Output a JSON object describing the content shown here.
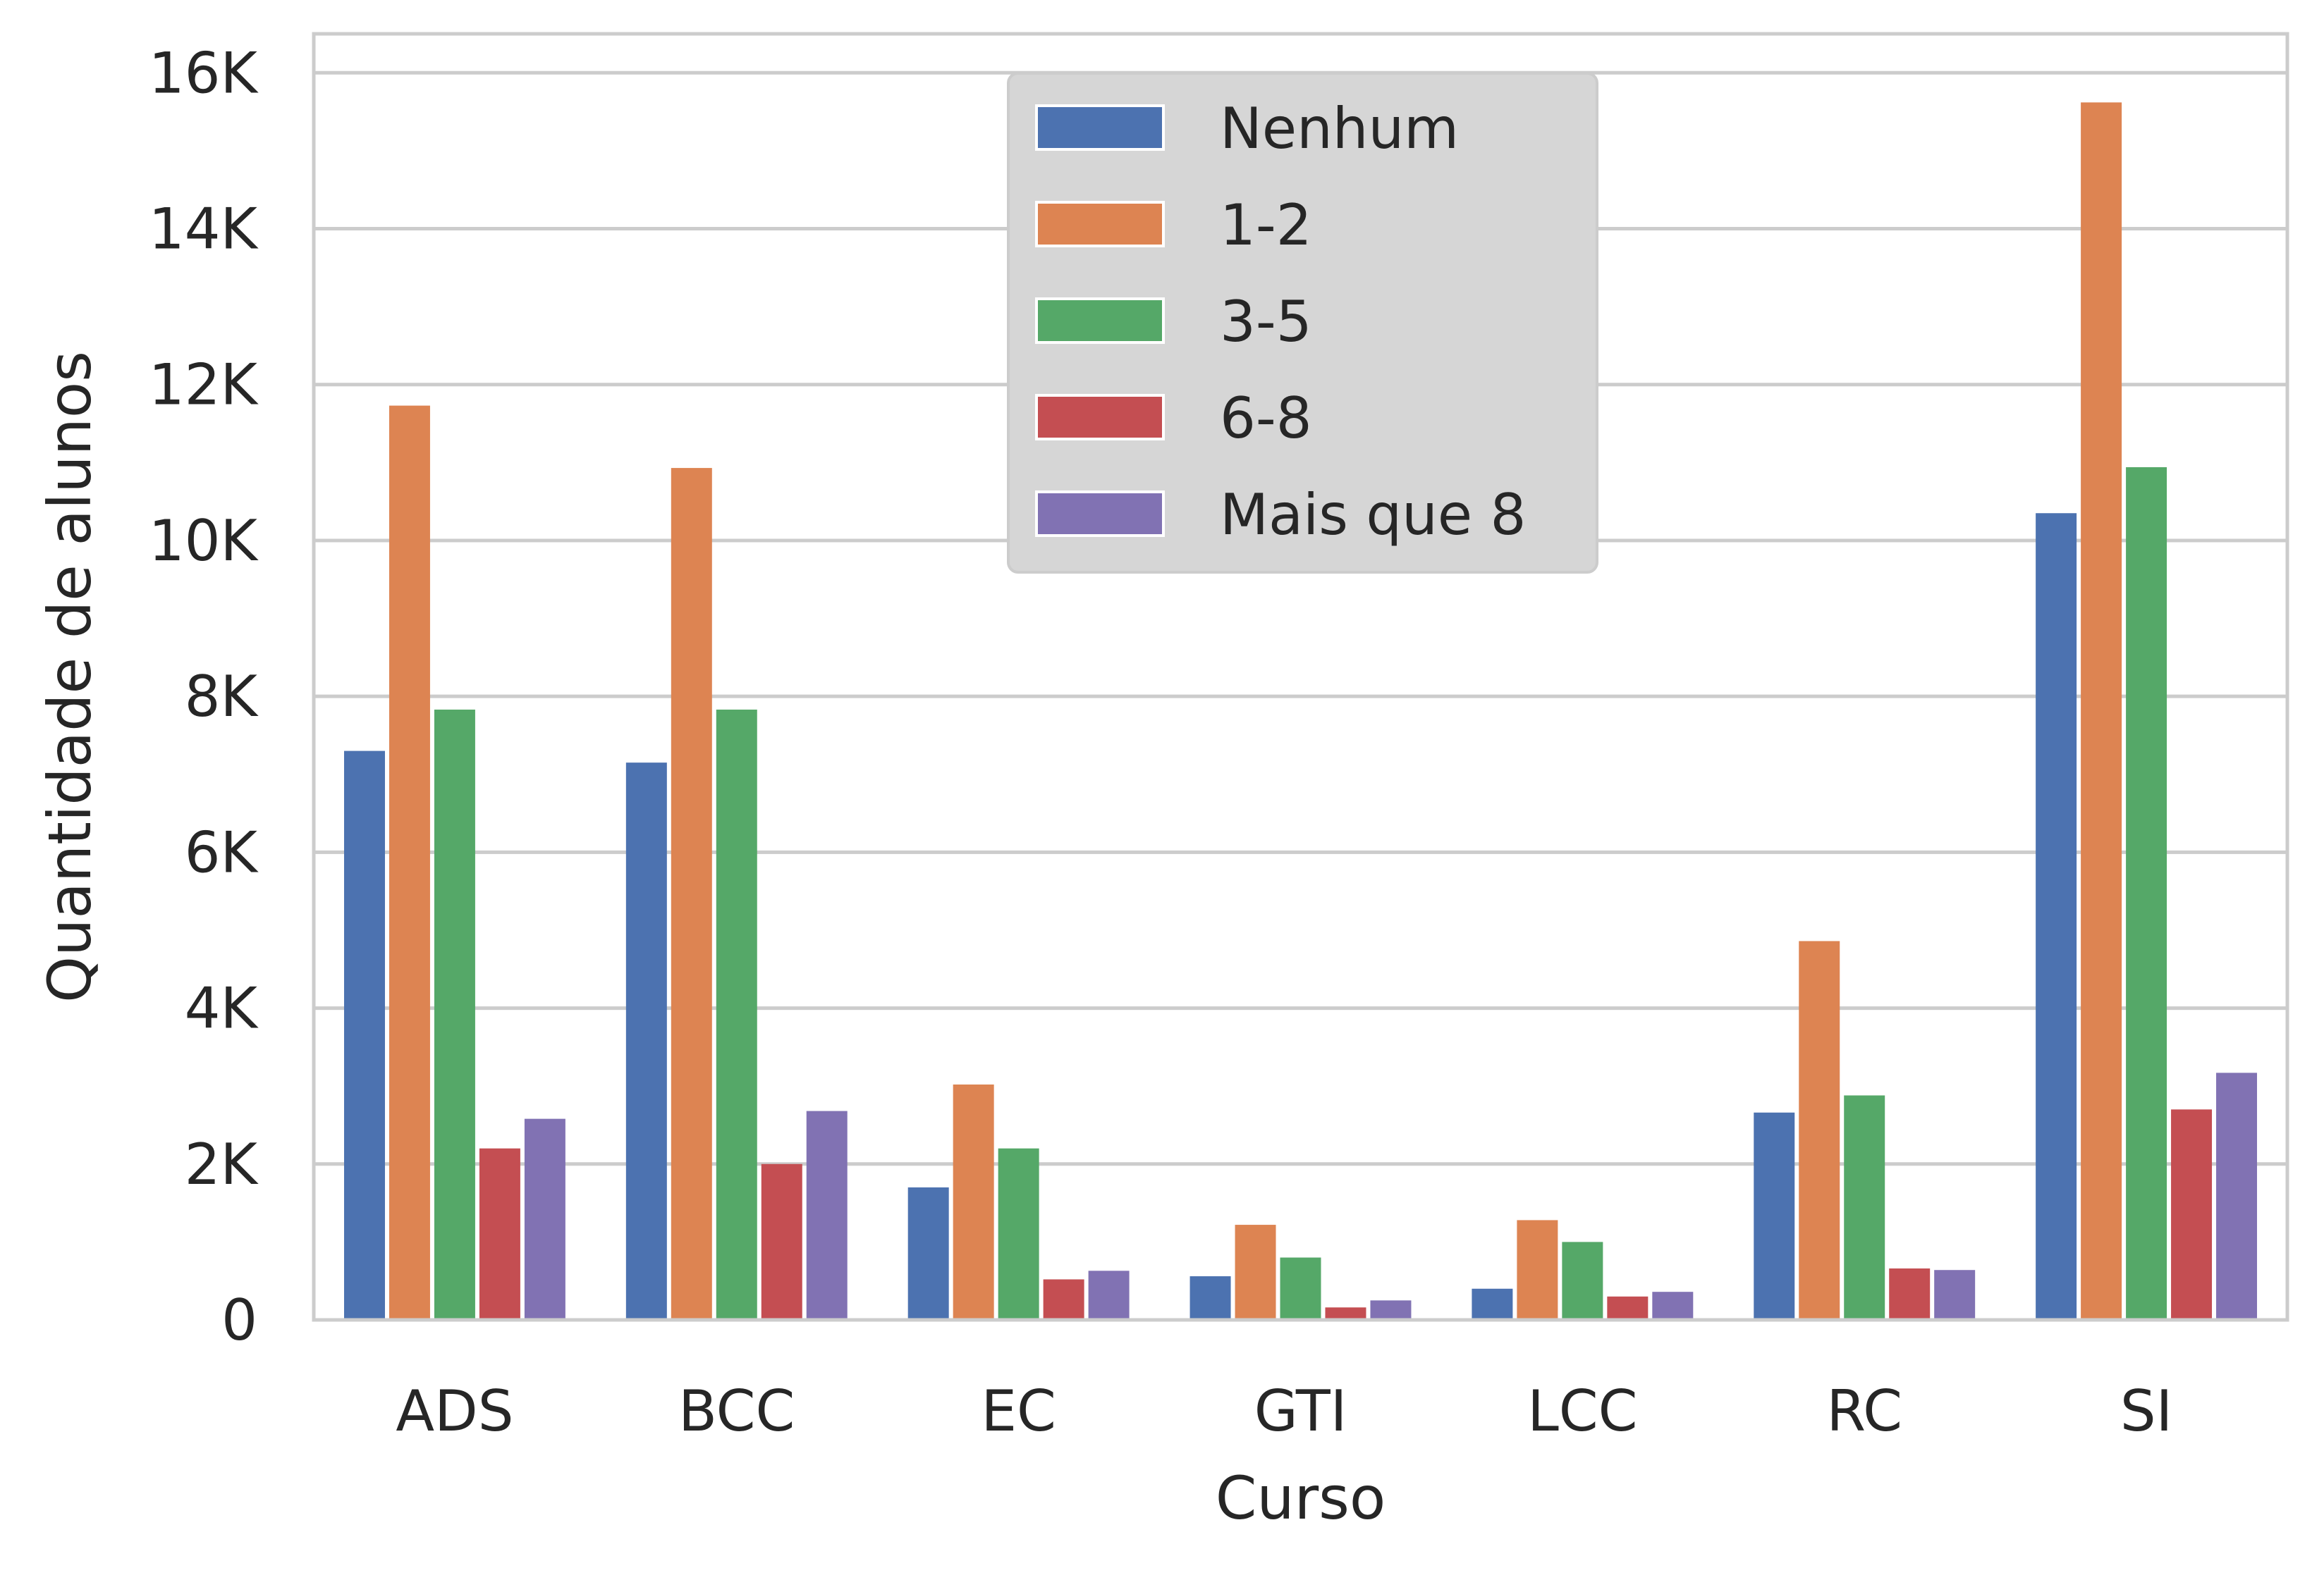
{
  "chart_data": {
    "type": "bar",
    "title": "",
    "xlabel": "Curso",
    "ylabel": "Quantidade de alunos",
    "categories": [
      "ADS",
      "BCC",
      "EC",
      "GTI",
      "LCC",
      "RC",
      "SI"
    ],
    "ylim": [
      0,
      16500
    ],
    "yticks": [
      0,
      2000,
      4000,
      6000,
      8000,
      10000,
      12000,
      14000,
      16000
    ],
    "ytick_labels": [
      "0",
      "2K",
      "4K",
      "6K",
      "8K",
      "10K",
      "12K",
      "14K",
      "16K"
    ],
    "grid": "horizontal",
    "legend_position": "top-center",
    "series": [
      {
        "name": "Nenhum",
        "color": "#4c72b0",
        "values": [
          7300,
          7150,
          1700,
          560,
          400,
          2660,
          10350
        ]
      },
      {
        "name": "1-2",
        "color": "#dd8452",
        "values": [
          11730,
          10930,
          3020,
          1220,
          1280,
          4860,
          15620
        ]
      },
      {
        "name": "3-5",
        "color": "#55a868",
        "values": [
          7830,
          7830,
          2200,
          800,
          1000,
          2880,
          10940
        ]
      },
      {
        "name": "6-8",
        "color": "#c44e52",
        "values": [
          2200,
          2000,
          520,
          160,
          300,
          660,
          2700
        ]
      },
      {
        "name": "Mais que 8",
        "color": "#8172b3",
        "values": [
          2580,
          2680,
          630,
          250,
          360,
          640,
          3170
        ]
      }
    ]
  }
}
